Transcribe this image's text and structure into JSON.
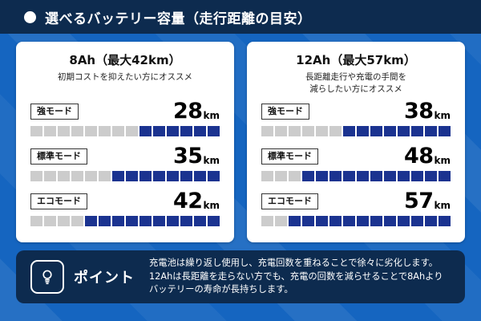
{
  "header": {
    "title": "選べるバッテリー容量（走行距離の目安）"
  },
  "cards": [
    {
      "title": "8Ah（最大42km）",
      "subtitle_lines": [
        "初期コストを抑えたい方にオススメ",
        ""
      ],
      "rows": [
        {
          "mode": "強モード",
          "value": "28",
          "unit": "km",
          "total": 14,
          "filled": 6
        },
        {
          "mode": "標準モード",
          "value": "35",
          "unit": "km",
          "total": 14,
          "filled": 8
        },
        {
          "mode": "エコモード",
          "value": "42",
          "unit": "km",
          "total": 14,
          "filled": 10
        }
      ]
    },
    {
      "title": "12Ah（最大57km）",
      "subtitle_lines": [
        "長距離走行や充電の手間を",
        "減らしたい方にオススメ"
      ],
      "rows": [
        {
          "mode": "強モード",
          "value": "38",
          "unit": "km",
          "total": 14,
          "filled": 8
        },
        {
          "mode": "標準モード",
          "value": "48",
          "unit": "km",
          "total": 14,
          "filled": 11
        },
        {
          "mode": "エコモード",
          "value": "57",
          "unit": "km",
          "total": 14,
          "filled": 12
        }
      ]
    }
  ],
  "point": {
    "icon": "lightbulb-icon",
    "label": "ポイント",
    "text_lines": [
      "充電池は繰り返し使用し、充電回数を重ねることで徐々に劣化します。",
      "12Ahは長距離を走らない方でも、充電の回数を減らせることで8Ahより",
      "バッテリーの寿命が長持ちします。"
    ]
  },
  "colors": {
    "background_blue": "#1565c0",
    "navy": "#0d2b4f",
    "segment_filled": "#1b3390",
    "segment_empty": "#cccccc"
  },
  "chart_data": {
    "type": "bar",
    "title": "選べるバッテリー容量（走行距離の目安）",
    "categories": [
      "強モード",
      "標準モード",
      "エコモード"
    ],
    "series": [
      {
        "name": "8Ah（最大42km）",
        "values": [
          28,
          35,
          42
        ]
      },
      {
        "name": "12Ah（最大57km）",
        "values": [
          38,
          48,
          57
        ]
      }
    ],
    "value_unit": "km",
    "xlim": [
      0,
      57
    ],
    "legend_position": "card-titles",
    "grid": false
  }
}
